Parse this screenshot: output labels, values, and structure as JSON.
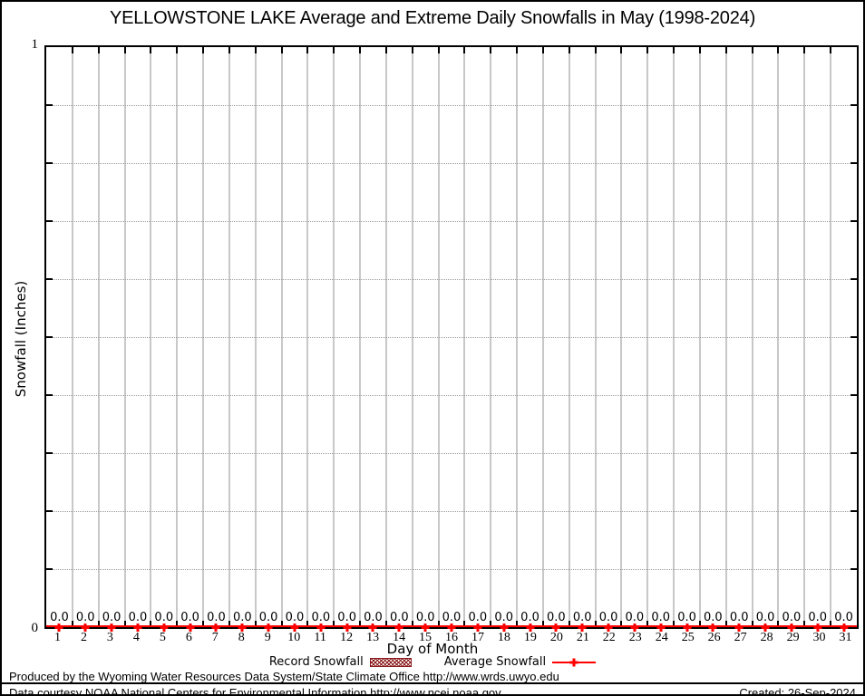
{
  "chart_data": {
    "type": "bar",
    "title": "YELLOWSTONE LAKE Average and Extreme Daily Snowfalls in May (1998-2024)",
    "xlabel": "Day of Month",
    "ylabel": "Snowfall (Inches)",
    "ylim": [
      0,
      1
    ],
    "y_tick_step": 0.1,
    "y_axis_labels": {
      "max": "1",
      "min": "0"
    },
    "x": [
      1,
      2,
      3,
      4,
      5,
      6,
      7,
      8,
      9,
      10,
      11,
      12,
      13,
      14,
      15,
      16,
      17,
      18,
      19,
      20,
      21,
      22,
      23,
      24,
      25,
      26,
      27,
      28,
      29,
      30,
      31
    ],
    "series": [
      {
        "name": "Record Snowfall",
        "type": "bar",
        "color": "#8b1a1a",
        "values": [
          0,
          0,
          0,
          0,
          0,
          0,
          0,
          0,
          0,
          0,
          0,
          0,
          0,
          0,
          0,
          0,
          0,
          0,
          0,
          0,
          0,
          0,
          0,
          0,
          0,
          0,
          0,
          0,
          0,
          0,
          0
        ]
      },
      {
        "name": "Average Snowfall",
        "type": "line",
        "color": "#ff0000",
        "values": [
          0,
          0,
          0,
          0,
          0,
          0,
          0,
          0,
          0,
          0,
          0,
          0,
          0,
          0,
          0,
          0,
          0,
          0,
          0,
          0,
          0,
          0,
          0,
          0,
          0,
          0,
          0,
          0,
          0,
          0,
          0
        ]
      }
    ],
    "point_labels": [
      "0.0",
      "0.0",
      "0.0",
      "0.0",
      "0.0",
      "0.0",
      "0.0",
      "0.0",
      "0.0",
      "0.0",
      "0.0",
      "0.0",
      "0.0",
      "0.0",
      "0.0",
      "0.0",
      "0.0",
      "0.0",
      "0.0",
      "0.0",
      "0.0",
      "0.0",
      "0.0",
      "0.0",
      "0.0",
      "0.0",
      "0.0",
      "0.0",
      "0.0",
      "0.0",
      "0.0"
    ],
    "grid": {
      "h_style": "dotted",
      "v_style": "solid",
      "v_at_day_boundaries": true
    },
    "legend_position": "bottom-center"
  },
  "footer": {
    "line1": "Produced by the Wyoming Water Resources Data System/State Climate Office http://www.wrds.uwyo.edu",
    "line2": "Data courtesy NOAA National Centers for Environmental Information http://www.ncei.noaa.gov",
    "created": "Created: 26-Sep-2024"
  }
}
